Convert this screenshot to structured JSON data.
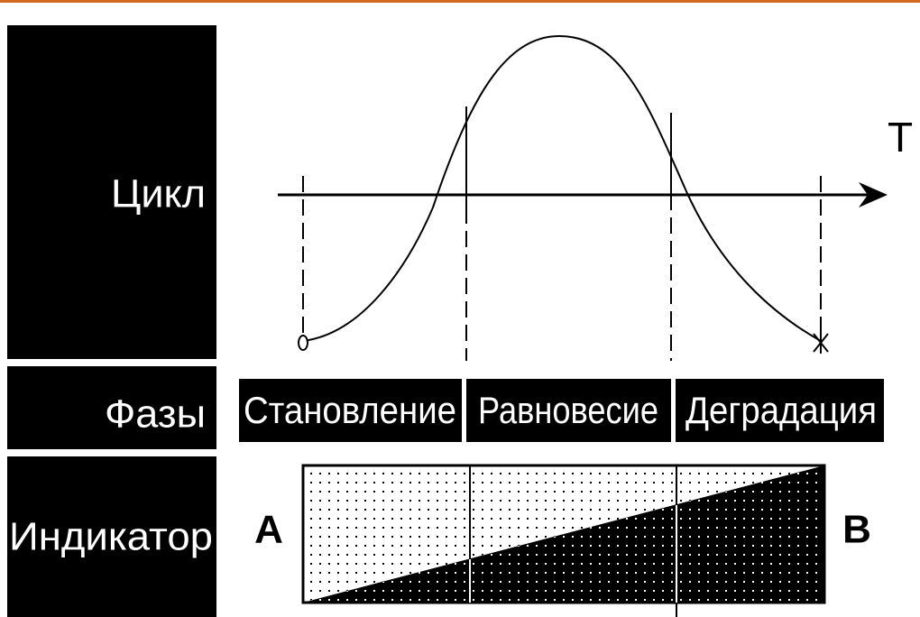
{
  "rows": [
    "Цикл",
    "Фазы",
    "Индикатор"
  ],
  "axis_label": "T",
  "phases": [
    "Становление",
    "Равновесие",
    "Деградация"
  ],
  "indicator_ends": [
    "А",
    "В"
  ]
}
